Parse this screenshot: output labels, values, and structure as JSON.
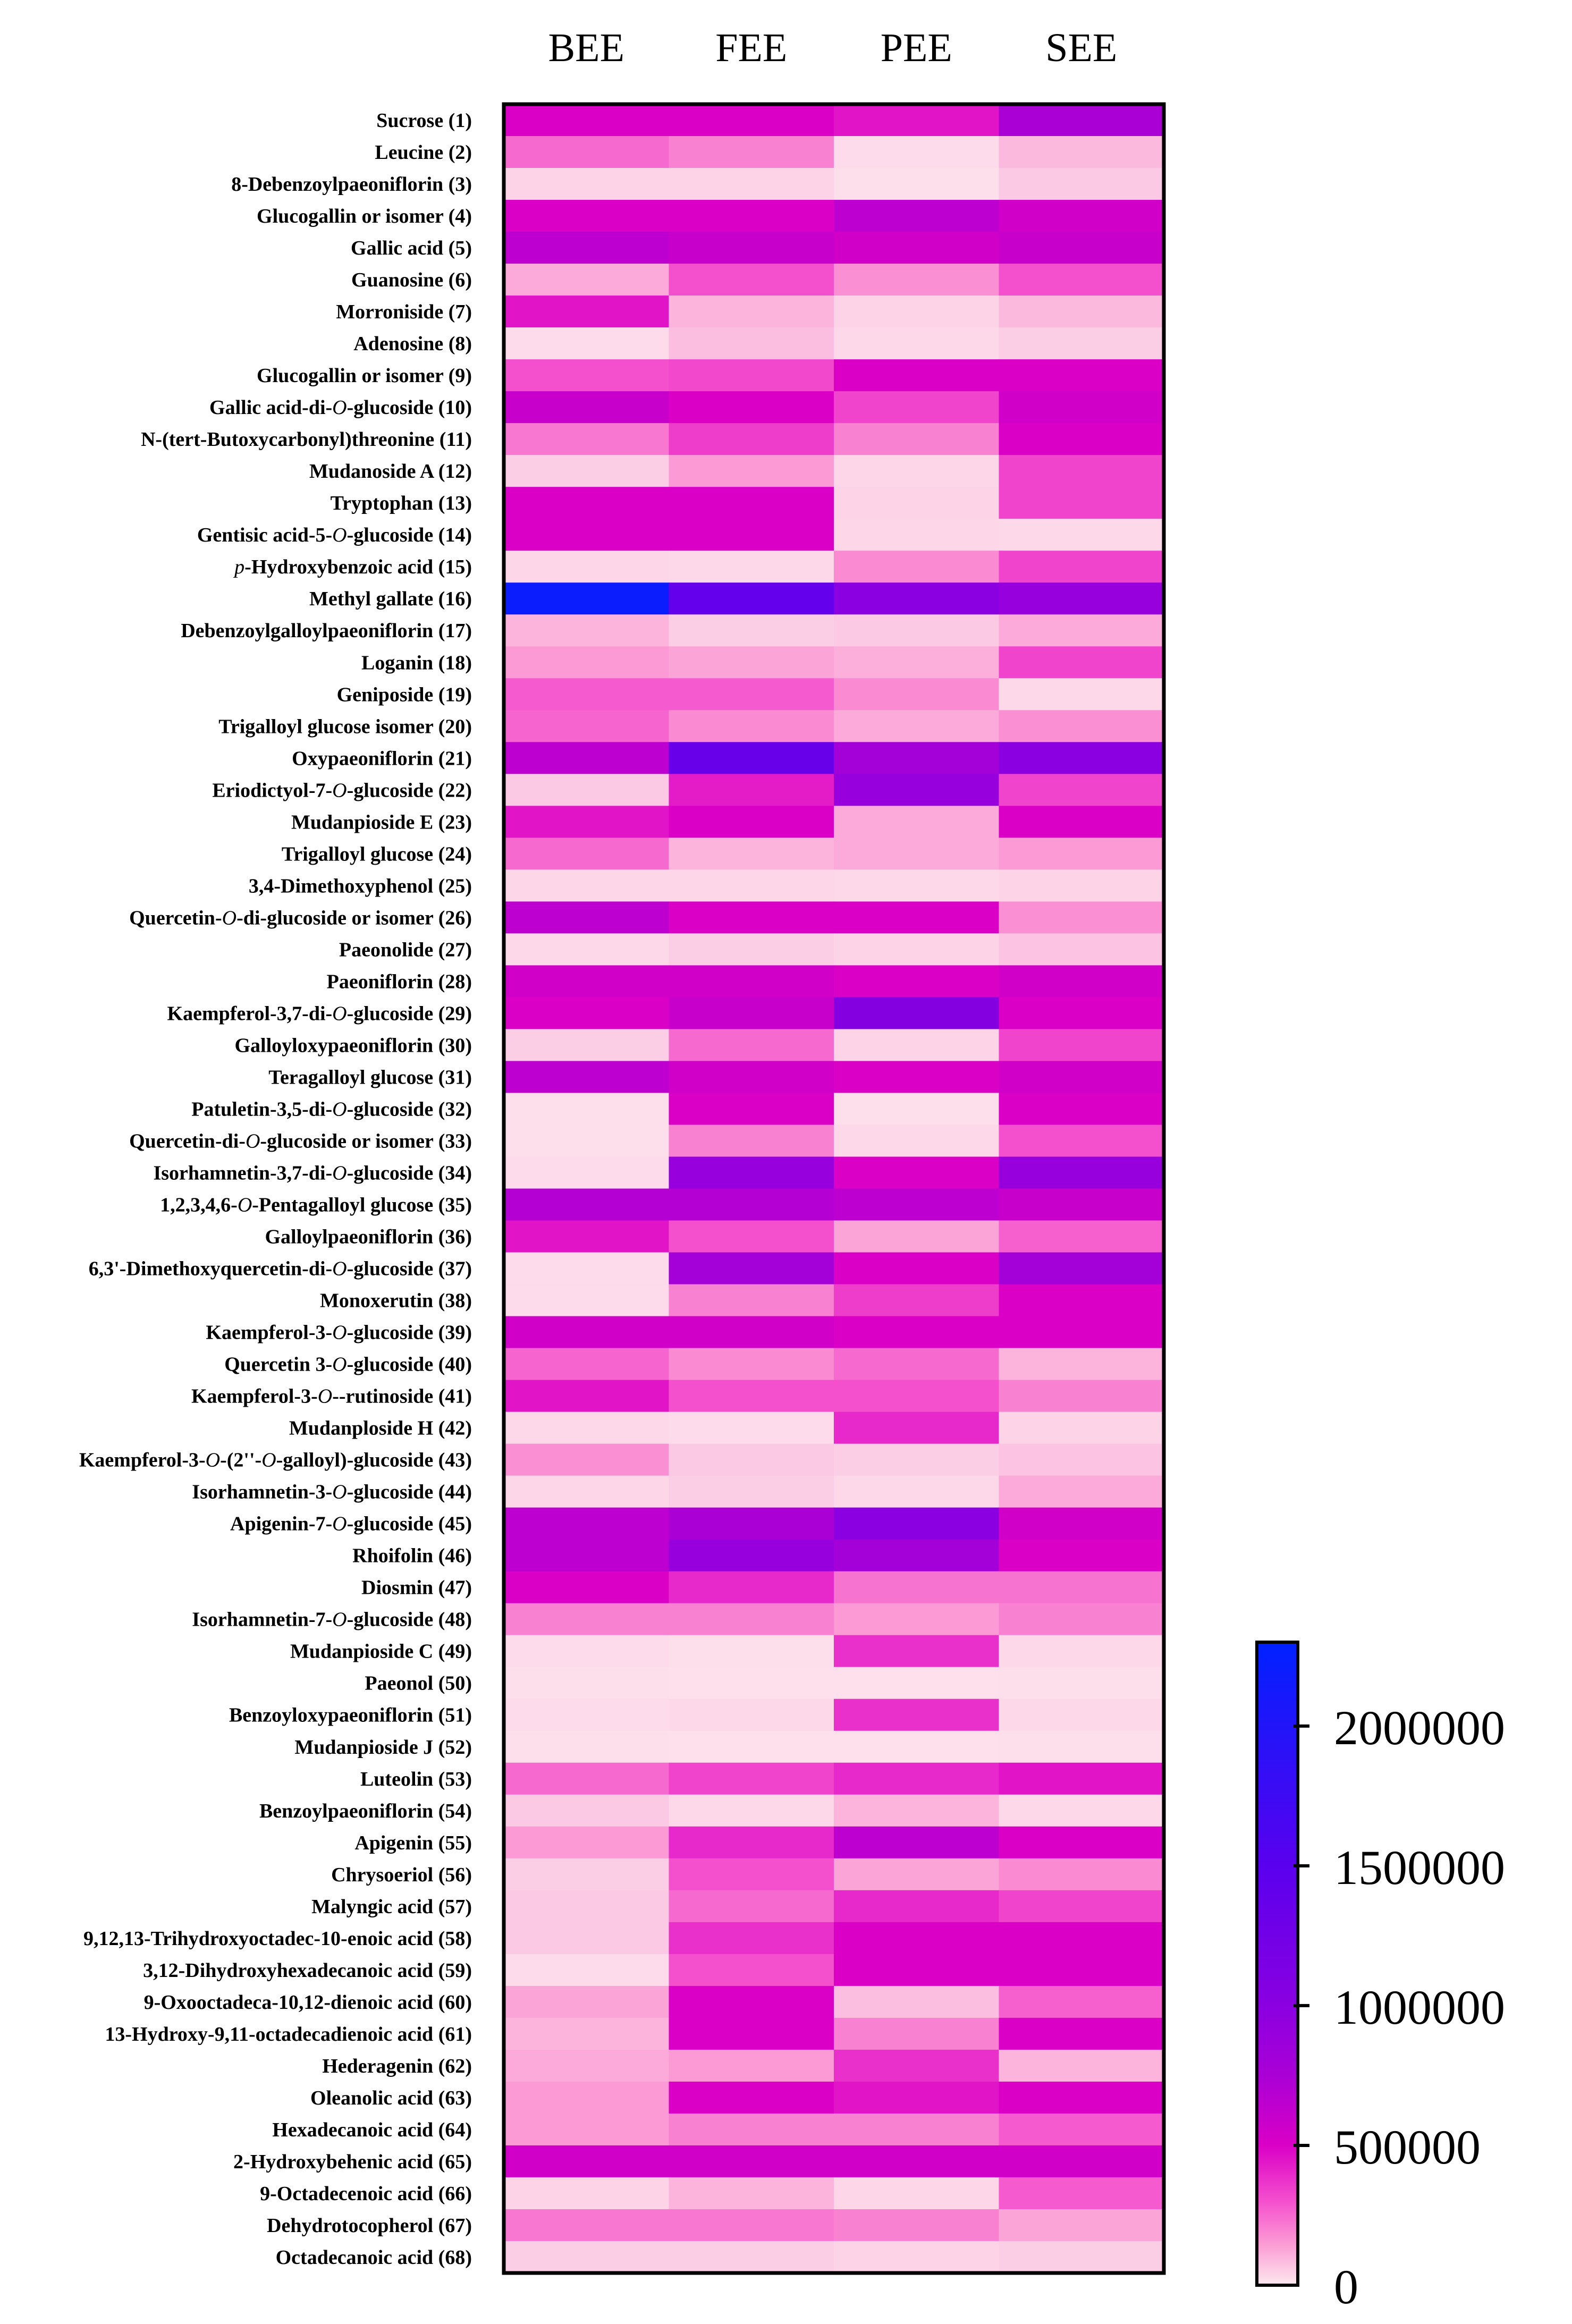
{
  "chart_data": {
    "type": "heatmap",
    "columns": [
      "BEE",
      "FEE",
      "PEE",
      "SEE"
    ],
    "rows": [
      {
        "parts": [
          {
            "t": "Sucrose (1)"
          }
        ],
        "values": [
          500000,
          500000,
          450000,
          750000
        ]
      },
      {
        "parts": [
          {
            "t": "Leucine (2)"
          }
        ],
        "values": [
          250000,
          200000,
          25000,
          90000
        ]
      },
      {
        "parts": [
          {
            "t": "8-Debenzoylpaeoniflorin (3)"
          }
        ],
        "values": [
          40000,
          40000,
          20000,
          60000
        ]
      },
      {
        "parts": [
          {
            "t": "Glucogallin or isomer (4)"
          }
        ],
        "values": [
          500000,
          500000,
          650000,
          550000
        ]
      },
      {
        "parts": [
          {
            "t": "Gallic acid (5)"
          }
        ],
        "values": [
          650000,
          600000,
          550000,
          600000
        ]
      },
      {
        "parts": [
          {
            "t": "Guanosine (6)"
          }
        ],
        "values": [
          120000,
          300000,
          170000,
          300000
        ]
      },
      {
        "parts": [
          {
            "t": "Morroniside (7)"
          }
        ],
        "values": [
          450000,
          100000,
          40000,
          90000
        ]
      },
      {
        "parts": [
          {
            "t": "Adenosine (8)"
          }
        ],
        "values": [
          25000,
          80000,
          30000,
          50000
        ]
      },
      {
        "parts": [
          {
            "t": "Glucogallin or isomer (9)"
          }
        ],
        "values": [
          300000,
          320000,
          500000,
          500000
        ]
      },
      {
        "parts": [
          {
            "t": "Gallic acid-di-"
          },
          {
            "t": "O",
            "i": true
          },
          {
            "t": "-glucoside (10)"
          }
        ],
        "values": [
          600000,
          500000,
          330000,
          550000
        ]
      },
      {
        "parts": [
          {
            "t": "N-(tert-Butoxycarbonyl)threonine (11)"
          }
        ],
        "values": [
          220000,
          350000,
          200000,
          500000
        ]
      },
      {
        "parts": [
          {
            "t": "Mudanoside A (12)"
          }
        ],
        "values": [
          50000,
          150000,
          35000,
          330000
        ]
      },
      {
        "parts": [
          {
            "t": "Tryptophan (13)"
          }
        ],
        "values": [
          500000,
          500000,
          40000,
          330000
        ]
      },
      {
        "parts": [
          {
            "t": "Gentisic acid-5-"
          },
          {
            "t": "O",
            "i": true
          },
          {
            "t": "-glucoside (14)"
          }
        ],
        "values": [
          500000,
          500000,
          35000,
          30000
        ]
      },
      {
        "parts": [
          {
            "t": "p",
            "i": true
          },
          {
            "t": "-Hydroxybenzoic acid (15)"
          }
        ],
        "values": [
          35000,
          30000,
          180000,
          330000
        ]
      },
      {
        "parts": [
          {
            "t": "Methyl gallate (16)"
          }
        ],
        "values": [
          2200000,
          1400000,
          1000000,
          900000
        ]
      },
      {
        "parts": [
          {
            "t": "Debenzoylgalloylpaeoniflorin (17)"
          }
        ],
        "values": [
          100000,
          50000,
          60000,
          120000
        ]
      },
      {
        "parts": [
          {
            "t": "Loganin (18)"
          }
        ],
        "values": [
          150000,
          130000,
          110000,
          330000
        ]
      },
      {
        "parts": [
          {
            "t": "Geniposide (19)"
          }
        ],
        "values": [
          280000,
          280000,
          180000,
          30000
        ]
      },
      {
        "parts": [
          {
            "t": "Trigalloyl glucose isomer (20)"
          }
        ],
        "values": [
          260000,
          180000,
          120000,
          170000
        ]
      },
      {
        "parts": [
          {
            "t": "Oxypaeoniflorin (21)"
          }
        ],
        "values": [
          650000,
          1350000,
          800000,
          1000000
        ]
      },
      {
        "parts": [
          {
            "t": "Eriodictyol-7-"
          },
          {
            "t": "O",
            "i": true
          },
          {
            "t": "-glucoside (22)"
          }
        ],
        "values": [
          60000,
          430000,
          900000,
          330000
        ]
      },
      {
        "parts": [
          {
            "t": "Mudanpioside E (23)"
          }
        ],
        "values": [
          450000,
          500000,
          120000,
          500000
        ]
      },
      {
        "parts": [
          {
            "t": "Trigalloyl glucose (24)"
          }
        ],
        "values": [
          250000,
          100000,
          120000,
          150000
        ]
      },
      {
        "parts": [
          {
            "t": "3,4-Dimethoxyphenol (25)"
          }
        ],
        "values": [
          35000,
          35000,
          30000,
          40000
        ]
      },
      {
        "parts": [
          {
            "t": "Quercetin-"
          },
          {
            "t": "O",
            "i": true
          },
          {
            "t": "-di-glucoside or isomer (26)"
          }
        ],
        "values": [
          650000,
          500000,
          500000,
          170000
        ]
      },
      {
        "parts": [
          {
            "t": "Paeonolide (27)"
          }
        ],
        "values": [
          30000,
          50000,
          40000,
          70000
        ]
      },
      {
        "parts": [
          {
            "t": "Paeoniflorin (28)"
          }
        ],
        "values": [
          550000,
          550000,
          500000,
          550000
        ]
      },
      {
        "parts": [
          {
            "t": "Kaempferol-3,7-di-"
          },
          {
            "t": "O",
            "i": true
          },
          {
            "t": "-glucoside (29)"
          }
        ],
        "values": [
          500000,
          600000,
          1050000,
          500000
        ]
      },
      {
        "parts": [
          {
            "t": "Galloyloxypaeoniflorin (30)"
          }
        ],
        "values": [
          50000,
          250000,
          40000,
          330000
        ]
      },
      {
        "parts": [
          {
            "t": "Teragalloyl glucose (31)"
          }
        ],
        "values": [
          650000,
          550000,
          500000,
          550000
        ]
      },
      {
        "parts": [
          {
            "t": "Patuletin-3,5-di-"
          },
          {
            "t": "O",
            "i": true
          },
          {
            "t": "-glucoside (32)"
          }
        ],
        "values": [
          20000,
          500000,
          20000,
          500000
        ]
      },
      {
        "parts": [
          {
            "t": "Quercetin-di-"
          },
          {
            "t": "O",
            "i": true
          },
          {
            "t": "-glucoside or isomer (33)"
          }
        ],
        "values": [
          20000,
          200000,
          30000,
          300000
        ]
      },
      {
        "parts": [
          {
            "t": "Isorhamnetin-3,7-di-"
          },
          {
            "t": "O",
            "i": true
          },
          {
            "t": "-glucoside (34)"
          }
        ],
        "values": [
          25000,
          900000,
          500000,
          900000
        ]
      },
      {
        "parts": [
          {
            "t": "1,2,3,4,6-"
          },
          {
            "t": "O",
            "i": true
          },
          {
            "t": "-Pentagalloyl glucose (35)"
          }
        ],
        "values": [
          700000,
          700000,
          650000,
          600000
        ]
      },
      {
        "parts": [
          {
            "t": "Galloylpaeoniflorin (36)"
          }
        ],
        "values": [
          450000,
          300000,
          130000,
          270000
        ]
      },
      {
        "parts": [
          {
            "t": "6,3'-Dimethoxyquercetin-di-"
          },
          {
            "t": "O",
            "i": true
          },
          {
            "t": "-glucoside (37)"
          }
        ],
        "values": [
          25000,
          800000,
          500000,
          800000
        ]
      },
      {
        "parts": [
          {
            "t": "Monoxerutin (38)"
          }
        ],
        "values": [
          25000,
          200000,
          350000,
          500000
        ]
      },
      {
        "parts": [
          {
            "t": "Kaempferol-3-"
          },
          {
            "t": "O",
            "i": true
          },
          {
            "t": "-glucoside (39)"
          }
        ],
        "values": [
          550000,
          550000,
          500000,
          500000
        ]
      },
      {
        "parts": [
          {
            "t": "Quercetin 3-"
          },
          {
            "t": "O",
            "i": true
          },
          {
            "t": "-glucoside (40)"
          }
        ],
        "values": [
          260000,
          180000,
          250000,
          100000
        ]
      },
      {
        "parts": [
          {
            "t": "Kaempferol-3-"
          },
          {
            "t": "O",
            "i": true
          },
          {
            "t": "--rutinoside (41)"
          }
        ],
        "values": [
          450000,
          300000,
          300000,
          200000
        ]
      },
      {
        "parts": [
          {
            "t": "Mudanploside H (42)"
          }
        ],
        "values": [
          30000,
          25000,
          400000,
          40000
        ]
      },
      {
        "parts": [
          {
            "t": "Kaempferol-3-"
          },
          {
            "t": "O",
            "i": true
          },
          {
            "t": "-(2''-"
          },
          {
            "t": "O",
            "i": true
          },
          {
            "t": "-galloyl)-glucoside (43)"
          }
        ],
        "values": [
          170000,
          60000,
          50000,
          70000
        ]
      },
      {
        "parts": [
          {
            "t": "Isorhamnetin-3-"
          },
          {
            "t": "O",
            "i": true
          },
          {
            "t": "-glucoside (44)"
          }
        ],
        "values": [
          35000,
          50000,
          30000,
          120000
        ]
      },
      {
        "parts": [
          {
            "t": "Apigenin-7-"
          },
          {
            "t": "O",
            "i": true
          },
          {
            "t": "-glucoside (45)"
          }
        ],
        "values": [
          650000,
          750000,
          1000000,
          550000
        ]
      },
      {
        "parts": [
          {
            "t": "Rhoifolin (46)"
          }
        ],
        "values": [
          650000,
          900000,
          800000,
          500000
        ]
      },
      {
        "parts": [
          {
            "t": "Diosmin (47)"
          }
        ],
        "values": [
          500000,
          400000,
          230000,
          230000
        ]
      },
      {
        "parts": [
          {
            "t": "Isorhamnetin-7-"
          },
          {
            "t": "O",
            "i": true
          },
          {
            "t": "-glucoside (48)"
          }
        ],
        "values": [
          200000,
          200000,
          150000,
          200000
        ]
      },
      {
        "parts": [
          {
            "t": "Mudanpioside C (49)"
          }
        ],
        "values": [
          25000,
          20000,
          380000,
          30000
        ]
      },
      {
        "parts": [
          {
            "t": "Paeonol (50)"
          }
        ],
        "values": [
          20000,
          15000,
          15000,
          20000
        ]
      },
      {
        "parts": [
          {
            "t": "Benzoyloxypaeoniflorin (51)"
          }
        ],
        "values": [
          25000,
          30000,
          380000,
          30000
        ]
      },
      {
        "parts": [
          {
            "t": "Mudanpioside J (52)"
          }
        ],
        "values": [
          20000,
          15000,
          15000,
          20000
        ]
      },
      {
        "parts": [
          {
            "t": "Luteolin (53)"
          }
        ],
        "values": [
          250000,
          330000,
          400000,
          450000
        ]
      },
      {
        "parts": [
          {
            "t": "Benzoylpaeoniflorin (54)"
          }
        ],
        "values": [
          60000,
          30000,
          100000,
          30000
        ]
      },
      {
        "parts": [
          {
            "t": "Apigenin (55)"
          }
        ],
        "values": [
          150000,
          400000,
          650000,
          500000
        ]
      },
      {
        "parts": [
          {
            "t": "Chrysoeriol (56)"
          }
        ],
        "values": [
          50000,
          300000,
          130000,
          180000
        ]
      },
      {
        "parts": [
          {
            "t": "Malyngic acid (57)"
          }
        ],
        "values": [
          60000,
          250000,
          400000,
          330000
        ]
      },
      {
        "parts": [
          {
            "t": "9,12,13-Trihydroxyoctadec-10-enoic acid (58)"
          }
        ],
        "values": [
          60000,
          380000,
          500000,
          500000
        ]
      },
      {
        "parts": [
          {
            "t": "3,12-Dihydroxyhexadecanoic acid (59)"
          }
        ],
        "values": [
          25000,
          300000,
          500000,
          500000
        ]
      },
      {
        "parts": [
          {
            "t": "9-Oxooctadeca-10,12-dienoic acid (60)"
          }
        ],
        "values": [
          130000,
          500000,
          80000,
          270000
        ]
      },
      {
        "parts": [
          {
            "t": "13-Hydroxy-9,11-octadecadienoic acid (61)"
          }
        ],
        "values": [
          100000,
          500000,
          200000,
          500000
        ]
      },
      {
        "parts": [
          {
            "t": "Hederagenin (62)"
          }
        ],
        "values": [
          120000,
          150000,
          380000,
          100000
        ]
      },
      {
        "parts": [
          {
            "t": "Oleanolic acid (63)"
          }
        ],
        "values": [
          150000,
          500000,
          450000,
          500000
        ]
      },
      {
        "parts": [
          {
            "t": "Hexadecanoic acid (64)"
          }
        ],
        "values": [
          150000,
          200000,
          200000,
          280000
        ]
      },
      {
        "parts": [
          {
            "t": "2-Hydroxybehenic acid (65)"
          }
        ],
        "values": [
          550000,
          550000,
          550000,
          550000
        ]
      },
      {
        "parts": [
          {
            "t": "9-Octadecenoic acid (66)"
          }
        ],
        "values": [
          40000,
          100000,
          35000,
          280000
        ]
      },
      {
        "parts": [
          {
            "t": "Dehydrotocopherol (67)"
          }
        ],
        "values": [
          220000,
          220000,
          200000,
          130000
        ]
      },
      {
        "parts": [
          {
            "t": "Octadecanoic acid (68)"
          }
        ],
        "values": [
          50000,
          50000,
          40000,
          50000
        ]
      }
    ],
    "colorbar": {
      "min": 0,
      "max": 2300000,
      "ticks": [
        0,
        500000,
        1000000,
        1500000,
        2000000
      ],
      "tick_labels": [
        "0",
        "500000",
        "1000000",
        "1500000",
        "2000000"
      ],
      "color_stops": [
        {
          "value": 0,
          "color": "#fde8ee"
        },
        {
          "value": 150000,
          "color": "#fb9ad4"
        },
        {
          "value": 300000,
          "color": "#f450cd"
        },
        {
          "value": 500000,
          "color": "#da00c6"
        },
        {
          "value": 750000,
          "color": "#aa00d6"
        },
        {
          "value": 1000000,
          "color": "#8a00e0"
        },
        {
          "value": 1500000,
          "color": "#5a00ee"
        },
        {
          "value": 2300000,
          "color": "#0021ff"
        }
      ]
    },
    "title": "",
    "xlabel": "",
    "ylabel": ""
  }
}
